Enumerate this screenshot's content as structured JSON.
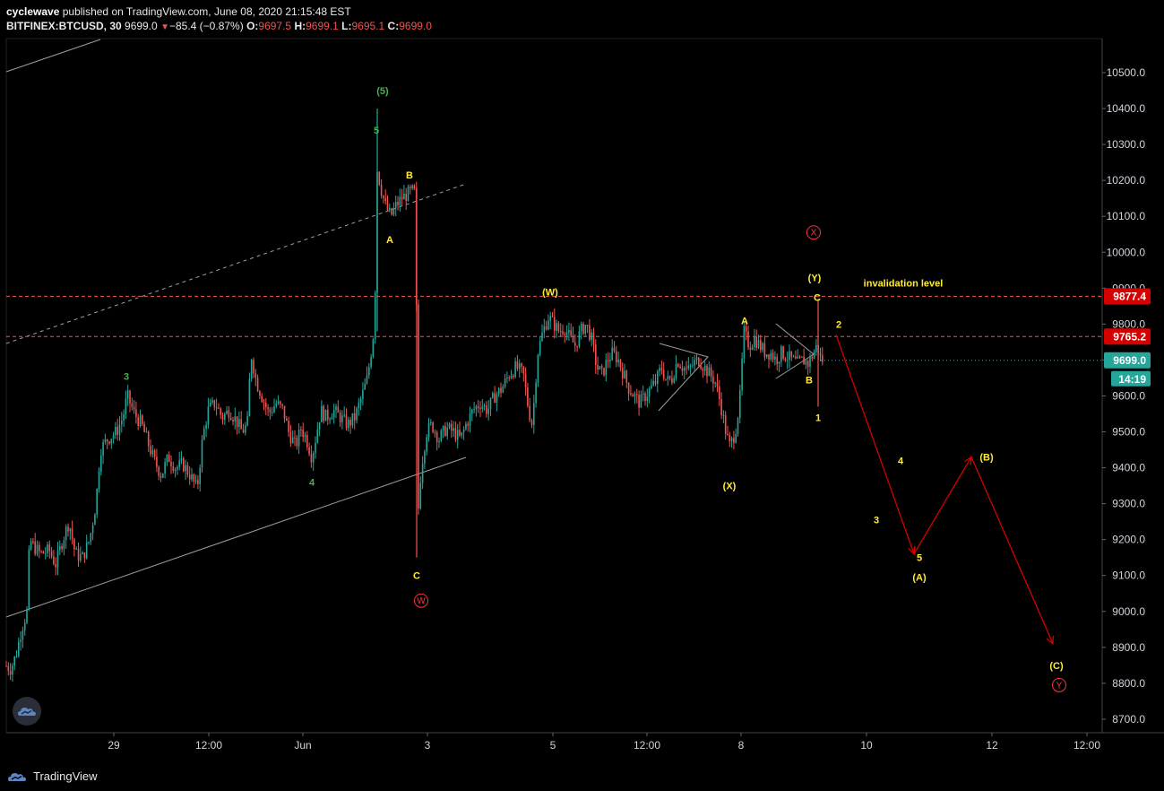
{
  "header": {
    "author": "cyclewave",
    "published_text": "published on TradingView.com, June 08, 2020 21:15:48 EST",
    "symbol": "BITFINEX:BTCUSD, 30",
    "last": "9699.0",
    "change_icon": "triangle-down-icon",
    "change": "−85.4 (−0.87%)",
    "o_label": "O:",
    "o_value": "9697.5",
    "h_label": "H:",
    "h_value": "9699.1",
    "l_label": "L:",
    "l_value": "9695.1",
    "c_label": "C:",
    "c_value": "9699.0"
  },
  "footer": {
    "brand": "TradingView",
    "logo_icon": "tradingview-logo-icon",
    "badge_icon": "tradingview-badge-icon"
  },
  "colors": {
    "background": "#000000",
    "up": "#26a69a",
    "down": "#ef5350",
    "green_label": "#4caf50",
    "yellow_label": "#ffeb3b",
    "red_label": "#f23645",
    "line_grey": "#9e9e9e",
    "price_tag_red": "#d50000",
    "price_tag_green": "#26a69a"
  },
  "chart_data": {
    "type": "candlestick",
    "symbol": "BITFINEX:BTCUSD",
    "interval": "30",
    "ylim": [
      8650,
      10580
    ],
    "y_ticks": [
      "10500.0",
      "10400.0",
      "10300.0",
      "10200.0",
      "10100.0",
      "10000.0",
      "9900.0",
      "9800.0",
      "9700.0",
      "9600.0",
      "9500.0",
      "9400.0",
      "9300.0",
      "9200.0",
      "9100.0",
      "9000.0",
      "8900.0",
      "8800.0",
      "8700.0"
    ],
    "x_ticks": [
      "29",
      "12:00",
      "Jun",
      "3",
      "5",
      "12:00",
      "8",
      "10",
      "12",
      "12:00"
    ],
    "price_path": [
      [
        0,
        8870
      ],
      [
        6,
        8850
      ],
      [
        12,
        8840
      ],
      [
        18,
        8880
      ],
      [
        24,
        8950
      ],
      [
        30,
        9000
      ],
      [
        33,
        9200
      ],
      [
        38,
        9180
      ],
      [
        45,
        9160
      ],
      [
        55,
        9170
      ],
      [
        62,
        9130
      ],
      [
        70,
        9200
      ],
      [
        77,
        9250
      ],
      [
        84,
        9160
      ],
      [
        92,
        9150
      ],
      [
        100,
        9200
      ],
      [
        107,
        9300
      ],
      [
        112,
        9450
      ],
      [
        120,
        9480
      ],
      [
        130,
        9500
      ],
      [
        137,
        9540
      ],
      [
        142,
        9600
      ],
      [
        150,
        9550
      ],
      [
        158,
        9520
      ],
      [
        165,
        9470
      ],
      [
        172,
        9420
      ],
      [
        180,
        9380
      ],
      [
        188,
        9430
      ],
      [
        196,
        9400
      ],
      [
        204,
        9410
      ],
      [
        212,
        9380
      ],
      [
        220,
        9340
      ],
      [
        226,
        9480
      ],
      [
        232,
        9560
      ],
      [
        240,
        9580
      ],
      [
        248,
        9540
      ],
      [
        256,
        9560
      ],
      [
        264,
        9530
      ],
      [
        270,
        9500
      ],
      [
        276,
        9520
      ],
      [
        280,
        9720
      ],
      [
        286,
        9640
      ],
      [
        292,
        9600
      ],
      [
        300,
        9550
      ],
      [
        308,
        9580
      ],
      [
        316,
        9560
      ],
      [
        322,
        9500
      ],
      [
        330,
        9460
      ],
      [
        336,
        9510
      ],
      [
        342,
        9480
      ],
      [
        348,
        9430
      ],
      [
        352,
        9480
      ],
      [
        358,
        9560
      ],
      [
        364,
        9540
      ],
      [
        372,
        9560
      ],
      [
        380,
        9540
      ],
      [
        388,
        9520
      ],
      [
        396,
        9540
      ],
      [
        404,
        9600
      ],
      [
        410,
        9650
      ],
      [
        414,
        9720
      ],
      [
        418,
        9800
      ],
      [
        421,
        10230
      ],
      [
        425,
        10180
      ],
      [
        430,
        10130
      ],
      [
        436,
        10100
      ],
      [
        442,
        10130
      ],
      [
        448,
        10150
      ],
      [
        454,
        10160
      ],
      [
        460,
        10170
      ],
      [
        464,
        10160
      ],
      [
        466,
        9250
      ],
      [
        470,
        9400
      ],
      [
        476,
        9500
      ],
      [
        482,
        9520
      ],
      [
        490,
        9480
      ],
      [
        498,
        9510
      ],
      [
        506,
        9500
      ],
      [
        514,
        9480
      ],
      [
        520,
        9520
      ],
      [
        528,
        9560
      ],
      [
        536,
        9580
      ],
      [
        544,
        9560
      ],
      [
        552,
        9600
      ],
      [
        560,
        9620
      ],
      [
        568,
        9660
      ],
      [
        576,
        9680
      ],
      [
        584,
        9660
      ],
      [
        590,
        9560
      ],
      [
        594,
        9520
      ],
      [
        600,
        9720
      ],
      [
        606,
        9780
      ],
      [
        612,
        9820
      ],
      [
        618,
        9800
      ],
      [
        624,
        9780
      ],
      [
        630,
        9790
      ],
      [
        636,
        9760
      ],
      [
        642,
        9740
      ],
      [
        648,
        9780
      ],
      [
        654,
        9800
      ],
      [
        660,
        9760
      ],
      [
        666,
        9680
      ],
      [
        672,
        9660
      ],
      [
        678,
        9700
      ],
      [
        684,
        9720
      ],
      [
        690,
        9700
      ],
      [
        696,
        9660
      ],
      [
        702,
        9620
      ],
      [
        708,
        9600
      ],
      [
        714,
        9580
      ],
      [
        720,
        9600
      ],
      [
        726,
        9620
      ],
      [
        732,
        9640
      ],
      [
        738,
        9680
      ],
      [
        744,
        9640
      ],
      [
        750,
        9650
      ],
      [
        756,
        9700
      ],
      [
        762,
        9680
      ],
      [
        768,
        9670
      ],
      [
        774,
        9690
      ],
      [
        780,
        9700
      ],
      [
        786,
        9680
      ],
      [
        792,
        9660
      ],
      [
        798,
        9640
      ],
      [
        804,
        9580
      ],
      [
        810,
        9500
      ],
      [
        814,
        9460
      ],
      [
        818,
        9480
      ],
      [
        822,
        9520
      ],
      [
        826,
        9600
      ],
      [
        830,
        9780
      ],
      [
        836,
        9740
      ],
      [
        842,
        9760
      ],
      [
        848,
        9740
      ],
      [
        854,
        9720
      ],
      [
        860,
        9720
      ],
      [
        866,
        9700
      ],
      [
        872,
        9720
      ],
      [
        878,
        9710
      ],
      [
        884,
        9700
      ],
      [
        890,
        9690
      ],
      [
        896,
        9700
      ],
      [
        902,
        9690
      ],
      [
        908,
        9720
      ],
      [
        912,
        9740
      ],
      [
        916,
        9700
      ],
      [
        920,
        9699
      ]
    ],
    "horizontal_levels": [
      {
        "price": 9877.4,
        "label": "9877.4"
      },
      {
        "price": 9765.2,
        "label": "9765.2"
      }
    ],
    "current_price": {
      "price": 9699.0,
      "label": "9699.0",
      "countdown": "14:19"
    },
    "annotations": {
      "invalidation": "invalidation level",
      "wave_labels": [
        {
          "text": "(5)",
          "x": 427,
          "price": 10450,
          "color": "green"
        },
        {
          "text": "5",
          "x": 420,
          "price": 10340,
          "color": "green"
        },
        {
          "text": "3",
          "x": 141,
          "price": 9655,
          "color": "green"
        },
        {
          "text": "4",
          "x": 348,
          "price": 9360,
          "color": "green"
        },
        {
          "text": "B",
          "x": 457,
          "price": 10215,
          "color": "yellow"
        },
        {
          "text": "A",
          "x": 435,
          "price": 10035,
          "color": "yellow"
        },
        {
          "text": "C",
          "x": 465,
          "price": 9100,
          "color": "yellow"
        },
        {
          "text": "(W)",
          "x": 614,
          "price": 9890,
          "color": "yellow"
        },
        {
          "text": "A",
          "x": 831,
          "price": 9810,
          "color": "yellow"
        },
        {
          "text": "(X)",
          "x": 814,
          "price": 9350,
          "color": "yellow"
        },
        {
          "text": "(Y)",
          "x": 909,
          "price": 9930,
          "color": "yellow"
        },
        {
          "text": "C",
          "x": 912,
          "price": 9875,
          "color": "yellow"
        },
        {
          "text": "B",
          "x": 903,
          "price": 9645,
          "color": "yellow"
        },
        {
          "text": "1",
          "x": 913,
          "price": 9540,
          "color": "yellow"
        },
        {
          "text": "2",
          "x": 936,
          "price": 9800,
          "color": "yellow"
        },
        {
          "text": "3",
          "x": 978,
          "price": 9255,
          "color": "yellow"
        },
        {
          "text": "4",
          "x": 1005,
          "price": 9420,
          "color": "yellow"
        },
        {
          "text": "5",
          "x": 1026,
          "price": 9150,
          "color": "yellow"
        },
        {
          "text": "(A)",
          "x": 1026,
          "price": 9095,
          "color": "yellow"
        },
        {
          "text": "(B)",
          "x": 1101,
          "price": 9430,
          "color": "yellow"
        },
        {
          "text": "(C)",
          "x": 1179,
          "price": 8850,
          "color": "yellow"
        }
      ],
      "circled_labels": [
        {
          "text": "W",
          "x": 470,
          "price": 9030
        },
        {
          "text": "X",
          "x": 908,
          "price": 10055
        },
        {
          "text": "Y",
          "x": 1182,
          "price": 8795
        }
      ],
      "projection_path": [
        [
          933,
          9770
        ],
        [
          1020,
          9160
        ],
        [
          1084,
          9430
        ],
        [
          1175,
          8910
        ]
      ]
    }
  }
}
